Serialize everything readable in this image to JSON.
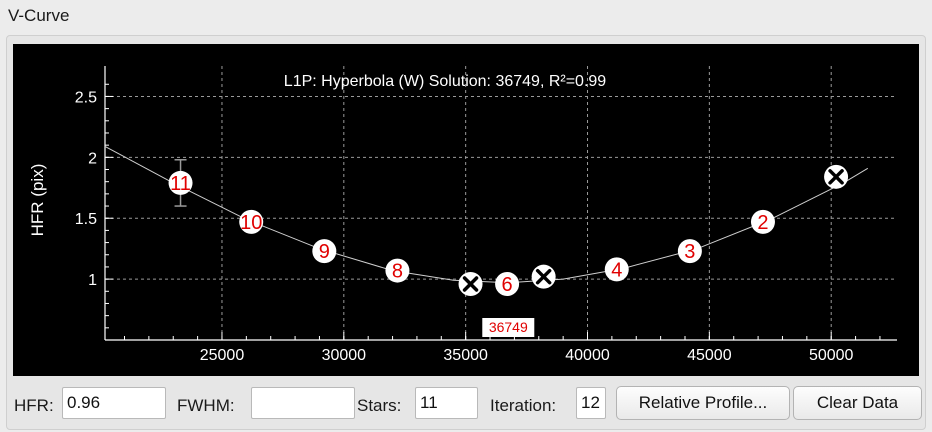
{
  "group_title": "V-Curve",
  "chart_data": {
    "type": "scatter",
    "title": "L1P: Hyperbola (W) Solution: 36749, R²=0.99",
    "xlabel": "",
    "ylabel": "HFR (pix)",
    "xlim": [
      20200,
      52700
    ],
    "ylim": [
      0.5,
      2.75
    ],
    "x_ticks": [
      25000,
      30000,
      35000,
      40000,
      45000,
      50000
    ],
    "y_ticks": [
      1,
      1.5,
      2,
      2.5
    ],
    "grid": true,
    "points": [
      {
        "x": 50200,
        "y": 1.84,
        "label": "",
        "marker": "excluded"
      },
      {
        "x": 47200,
        "y": 1.47,
        "label": "2"
      },
      {
        "x": 44200,
        "y": 1.23,
        "label": "3"
      },
      {
        "x": 41200,
        "y": 1.08,
        "label": "4"
      },
      {
        "x": 38200,
        "y": 1.02,
        "label": "",
        "marker": "excluded"
      },
      {
        "x": 36700,
        "y": 0.96,
        "label": "6"
      },
      {
        "x": 35200,
        "y": 0.96,
        "label": "",
        "marker": "excluded"
      },
      {
        "x": 32200,
        "y": 1.07,
        "label": "8"
      },
      {
        "x": 29200,
        "y": 1.23,
        "label": "9"
      },
      {
        "x": 26200,
        "y": 1.47,
        "label": "10"
      },
      {
        "x": 23300,
        "y": 1.79,
        "label": "11",
        "error": 0.19
      }
    ],
    "curve": [
      {
        "x": 20200,
        "y": 2.09
      },
      {
        "x": 23000,
        "y": 1.79
      },
      {
        "x": 26000,
        "y": 1.49
      },
      {
        "x": 29000,
        "y": 1.25
      },
      {
        "x": 32000,
        "y": 1.07
      },
      {
        "x": 34500,
        "y": 0.99
      },
      {
        "x": 36749,
        "y": 0.97
      },
      {
        "x": 39000,
        "y": 1.0
      },
      {
        "x": 41500,
        "y": 1.09
      },
      {
        "x": 44500,
        "y": 1.25
      },
      {
        "x": 47500,
        "y": 1.49
      },
      {
        "x": 50500,
        "y": 1.79
      },
      {
        "x": 51500,
        "y": 1.91
      }
    ],
    "solution": {
      "x": 36749,
      "label": "36749"
    }
  },
  "controls": {
    "hfr_label": "HFR:",
    "hfr_value": "0.96",
    "fwhm_label": "FWHM:",
    "fwhm_value": "",
    "stars_label": "Stars:",
    "stars_value": "11",
    "iteration_label": "Iteration:",
    "iteration_value": "12",
    "relative_profile_button": "Relative Profile...",
    "clear_data_button": "Clear Data"
  }
}
